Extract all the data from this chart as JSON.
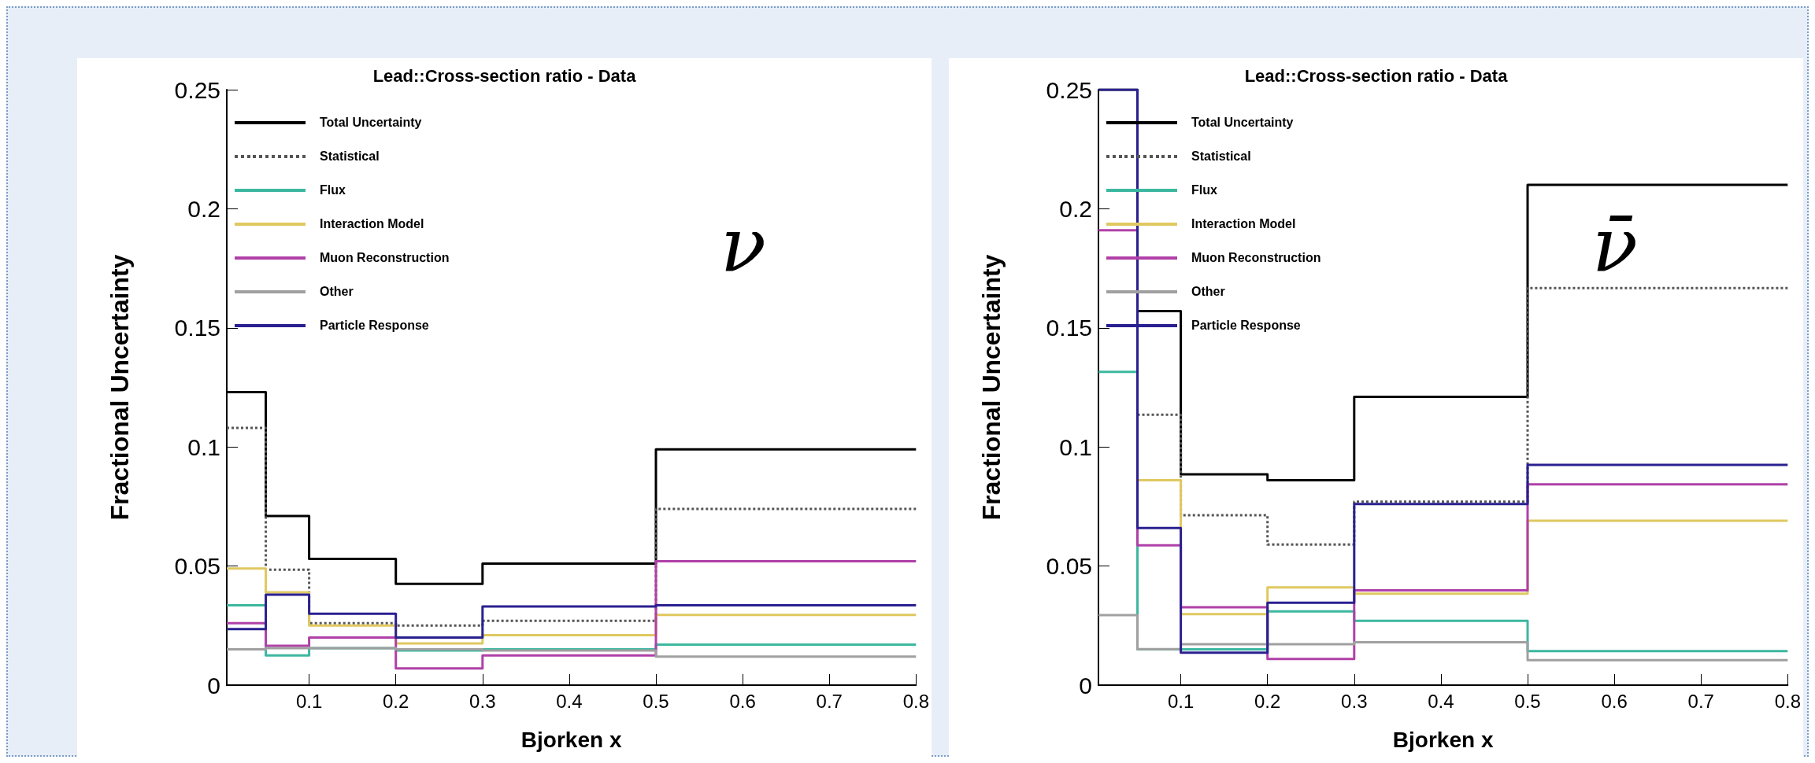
{
  "chart_data": [
    {
      "type": "histogram",
      "title": "Lead::Cross-section ratio - Data",
      "xlabel": "Bjorken x",
      "ylabel": "Fractional Uncertainty",
      "annotations": [
        "ν"
      ],
      "legend": "top left",
      "grid": false,
      "bins": [
        0.005,
        0.05,
        0.1,
        0.2,
        0.3,
        0.5,
        0.8
      ],
      "xlim": [
        0.005,
        0.8
      ],
      "xticks": [
        0.1,
        0.2,
        0.3,
        0.4,
        0.5,
        0.6,
        0.7,
        0.8
      ],
      "ylim": [
        0,
        0.25
      ],
      "yticks": [
        0,
        0.05,
        0.1,
        0.15,
        0.2,
        0.25
      ],
      "series": [
        {
          "name": "Total Uncertainty",
          "color": "#000000",
          "line_style": "solid",
          "values": [
            0.123,
            0.071,
            0.053,
            0.0425,
            0.051,
            0.099
          ]
        },
        {
          "name": "Statistical",
          "color": "#555555",
          "line_style": "dotted",
          "values": [
            0.108,
            0.0485,
            0.026,
            0.025,
            0.027,
            0.074
          ]
        },
        {
          "name": "Flux",
          "color": "#3cb8a0",
          "line_style": "solid",
          "values": [
            0.0335,
            0.0125,
            0.0155,
            0.0145,
            0.015,
            0.017
          ]
        },
        {
          "name": "Interaction Model",
          "color": "#e0c860",
          "line_style": "solid",
          "values": [
            0.049,
            0.039,
            0.025,
            0.0175,
            0.021,
            0.0295
          ]
        },
        {
          "name": "Muon Reconstruction",
          "color": "#b040a8",
          "line_style": "solid",
          "values": [
            0.026,
            0.0165,
            0.02,
            0.007,
            0.0125,
            0.052
          ]
        },
        {
          "name": "Other",
          "color": "#a0a0a0",
          "line_style": "solid",
          "values": [
            0.015,
            0.0155,
            0.0155,
            0.015,
            0.0145,
            0.012
          ]
        },
        {
          "name": "Particle Response",
          "color": "#2a2090",
          "line_style": "solid",
          "values": [
            0.0235,
            0.038,
            0.03,
            0.02,
            0.033,
            0.0335
          ]
        }
      ]
    },
    {
      "type": "histogram",
      "title": "Lead::Cross-section ratio - Data",
      "xlabel": "Bjorken x",
      "ylabel": "Fractional Uncertainty",
      "annotations": [
        "ν̄"
      ],
      "legend": "top left",
      "grid": false,
      "bins": [
        0.005,
        0.05,
        0.1,
        0.2,
        0.3,
        0.5,
        0.8
      ],
      "xlim": [
        0.005,
        0.8
      ],
      "xticks": [
        0.1,
        0.2,
        0.3,
        0.4,
        0.5,
        0.6,
        0.7,
        0.8
      ],
      "ylim": [
        0,
        0.25
      ],
      "yticks": [
        0,
        0.05,
        0.1,
        0.15,
        0.2,
        0.25
      ],
      "series": [
        {
          "name": "Total Uncertainty",
          "color": "#000000",
          "line_style": "solid",
          "values": [
            0.25,
            0.157,
            0.0885,
            0.086,
            0.121,
            0.21
          ]
        },
        {
          "name": "Statistical",
          "color": "#555555",
          "line_style": "dotted",
          "bins": [
            0.05,
            0.1,
            0.2,
            0.3,
            0.5,
            0.8
          ],
          "values": [
            0.1135,
            0.0713,
            0.059,
            0.077,
            0.1667
          ]
        },
        {
          "name": "Flux",
          "color": "#3cb8a0",
          "line_style": "solid",
          "values": [
            0.1315,
            0.015,
            0.015,
            0.031,
            0.027,
            0.0143
          ]
        },
        {
          "name": "Interaction Model",
          "color": "#e0c860",
          "line_style": "solid",
          "bins": [
            0.05,
            0.1,
            0.2,
            0.3,
            0.5,
            0.8
          ],
          "values": [
            0.086,
            0.0298,
            0.041,
            0.0384,
            0.069
          ]
        },
        {
          "name": "Muon Reconstruction",
          "color": "#b040a8",
          "line_style": "solid",
          "values": [
            0.191,
            0.0587,
            0.0327,
            0.011,
            0.0398,
            0.0843
          ]
        },
        {
          "name": "Other",
          "color": "#a0a0a0",
          "line_style": "solid",
          "values": [
            0.0294,
            0.0151,
            0.0172,
            0.0172,
            0.018,
            0.0105
          ]
        },
        {
          "name": "Particle Response",
          "color": "#2a2090",
          "line_style": "solid",
          "values": [
            0.25,
            0.066,
            0.0136,
            0.0346,
            0.076,
            0.0925
          ]
        }
      ]
    }
  ]
}
